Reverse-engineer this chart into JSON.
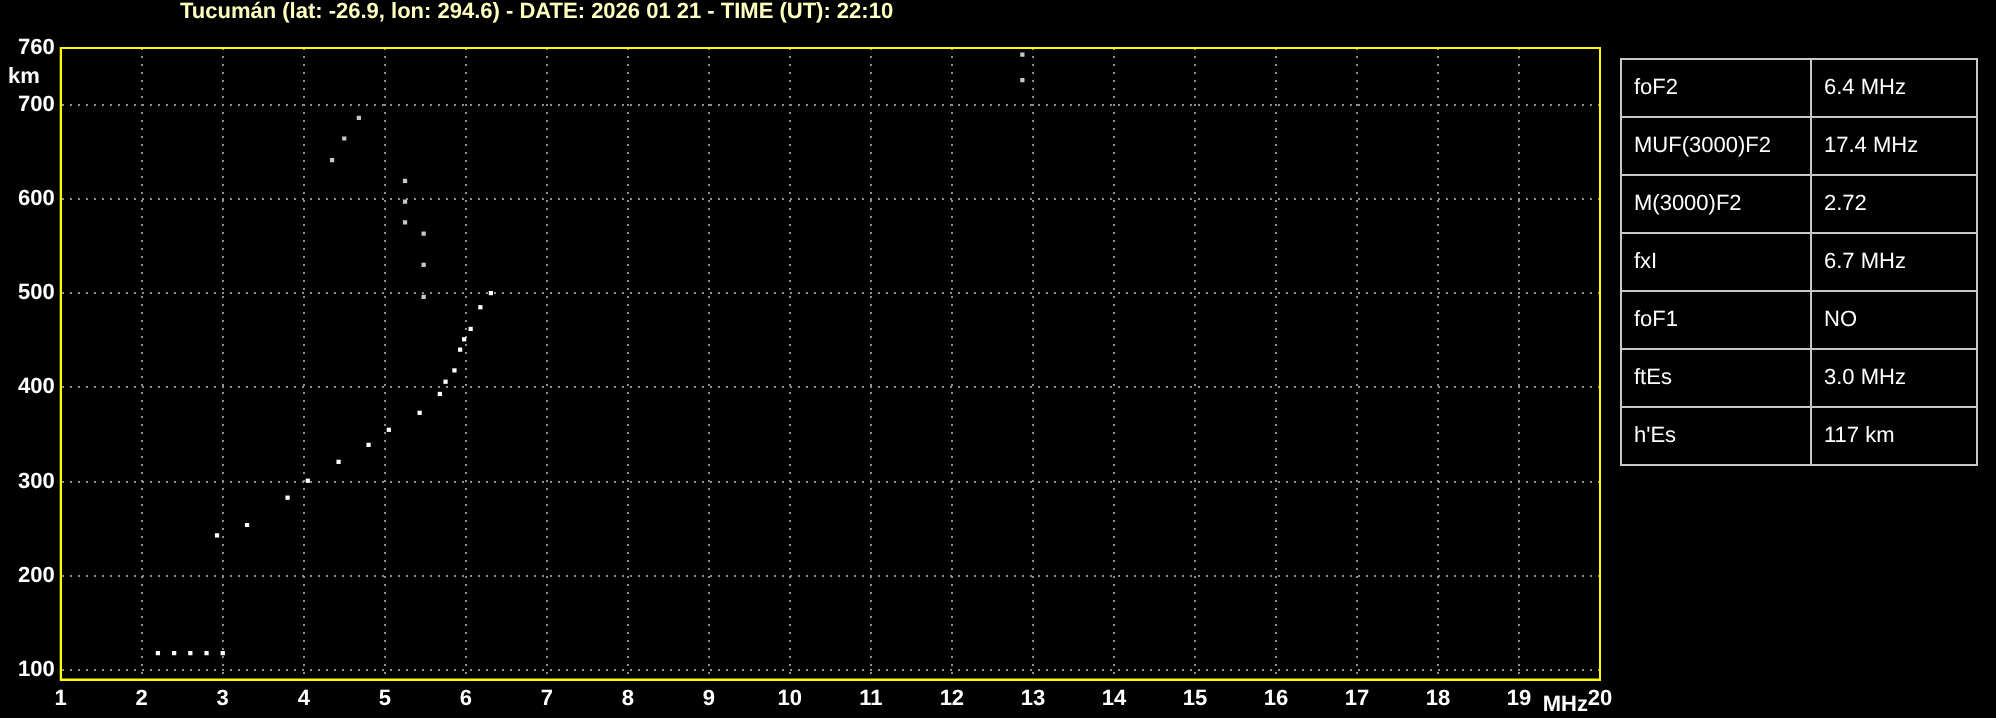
{
  "chart_data": {
    "type": "scatter",
    "title": "Tucumán (lat: -26.9, lon: 294.6) - DATE: 2026 01 21 - TIME (UT): 22:10",
    "xlabel": "MHz",
    "ylabel": "km",
    "series": [
      {
        "color": "#ffffff",
        "x": [
          2.2,
          2.4,
          2.6,
          2.8,
          3.0,
          2.93,
          3.3,
          3.8,
          4.05,
          4.43,
          4.8,
          5.05,
          5.43,
          5.68,
          5.86,
          5.98,
          6.18,
          6.31,
          5.75,
          5.93,
          6.06
        ],
        "values": [
          118,
          118,
          118,
          118,
          118,
          243,
          254,
          283,
          301,
          321,
          339,
          355,
          373,
          393,
          418,
          451,
          485,
          500,
          406,
          440,
          462
        ]
      },
      {
        "color": "#c8c8c8",
        "x": [
          4.35,
          4.5,
          4.68,
          5.25,
          5.25,
          5.25,
          5.48,
          5.48,
          5.48,
          12.87,
          12.87
        ],
        "values": [
          641,
          664,
          686,
          619,
          597,
          575,
          563,
          530,
          496,
          753,
          726
        ]
      }
    ],
    "xlim": [
      1,
      20
    ],
    "xticks": [
      1,
      2,
      3,
      4,
      5,
      6,
      7,
      8,
      9,
      10,
      11,
      12,
      13,
      14,
      15,
      16,
      17,
      18,
      19,
      20
    ],
    "ylim": [
      90,
      760
    ],
    "yticks": [
      100,
      200,
      300,
      400,
      500,
      600,
      700,
      760
    ],
    "grid": true,
    "marker": "square",
    "legend": false,
    "annotations": [
      "foF2",
      "6.4 MHz",
      "MUF(3000)F2",
      "17.4 MHz",
      "M(3000)F2",
      "2.72",
      "fxI",
      "6.7 MHz",
      "foF1",
      "NO",
      "ftEs",
      "3.0 MHz",
      "h'Es",
      "117 km"
    ]
  }
}
